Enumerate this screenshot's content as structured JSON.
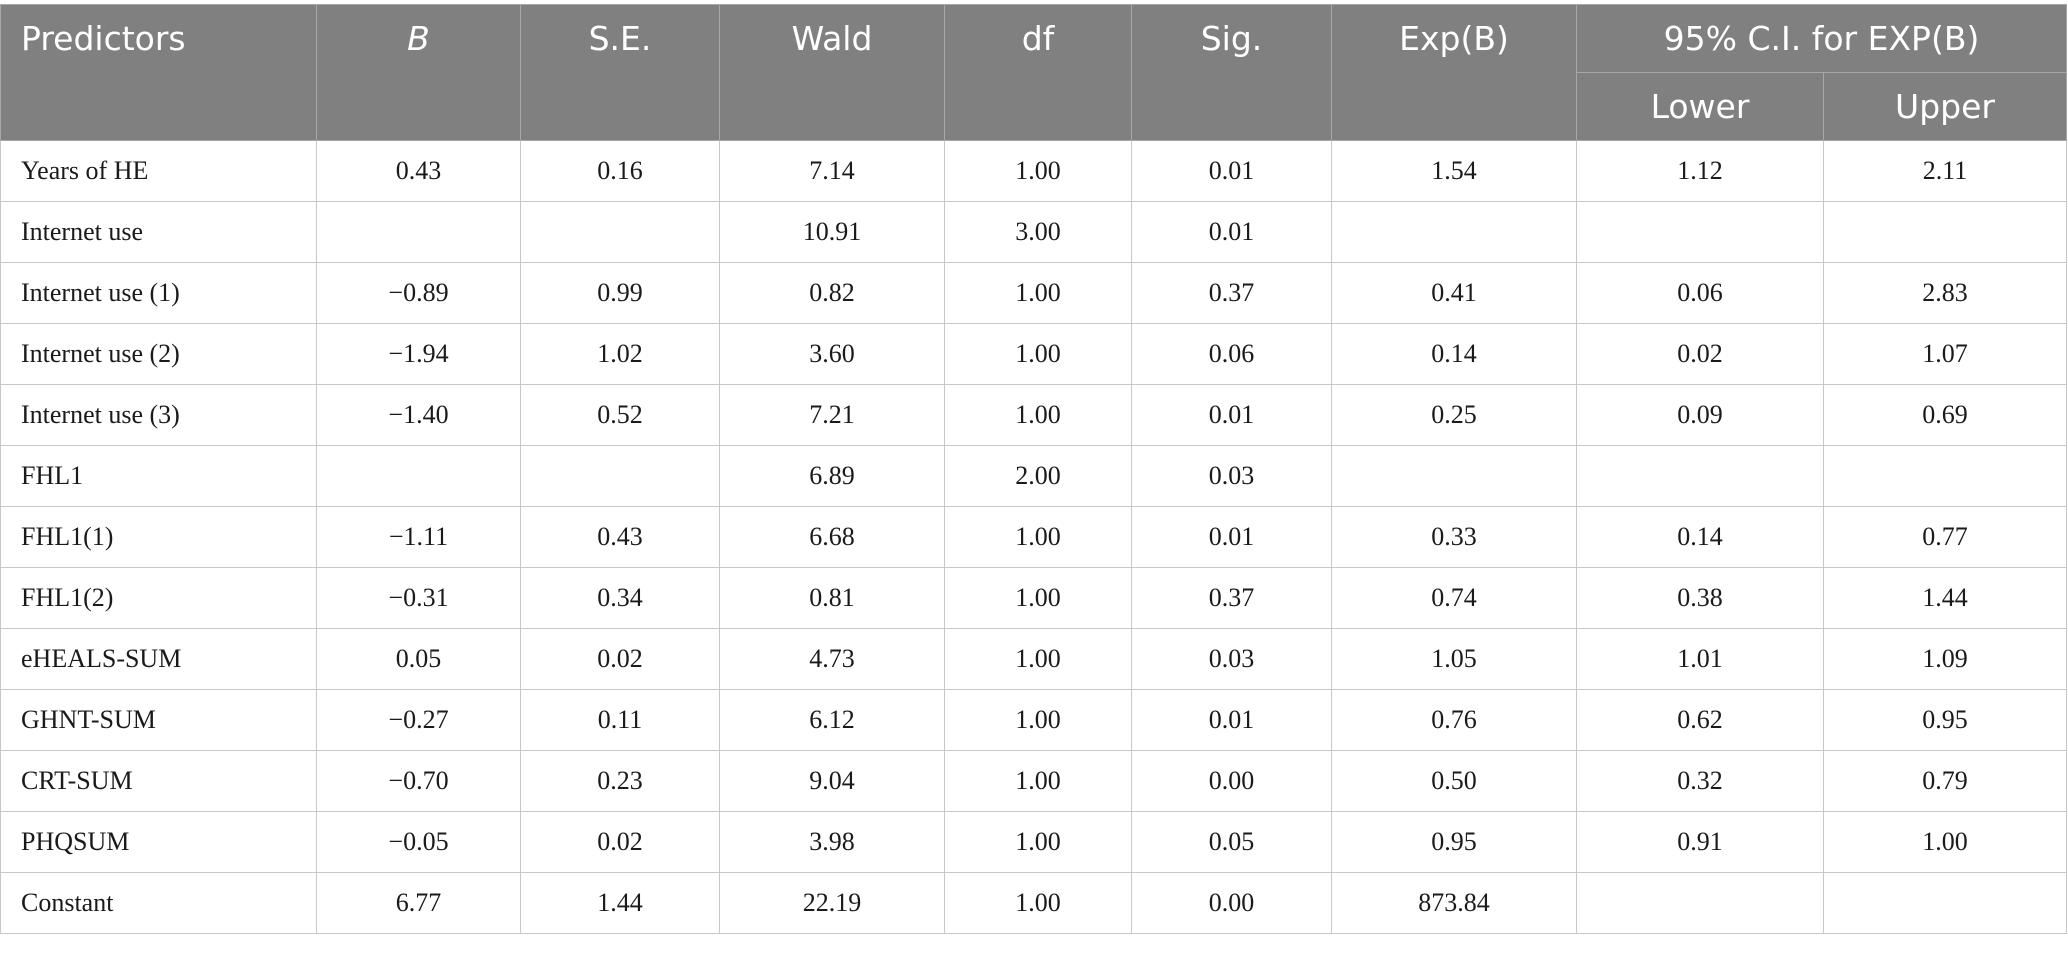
{
  "headers": {
    "predictors": "Predictors",
    "b": "B",
    "se": "S.E.",
    "wald": "Wald",
    "df": "df",
    "sig": "Sig.",
    "expb": "Exp(B)",
    "ci": "95% C.I. for EXP(B)",
    "lower": "Lower",
    "upper": "Upper"
  },
  "rows": [
    {
      "label": "Years of HE",
      "b": "0.43",
      "se": "0.16",
      "wald": "7.14",
      "df": "1.00",
      "sig": "0.01",
      "expb": "1.54",
      "lower": "1.12",
      "upper": "2.11"
    },
    {
      "label": "Internet use",
      "b": "",
      "se": "",
      "wald": "10.91",
      "df": "3.00",
      "sig": "0.01",
      "expb": "",
      "lower": "",
      "upper": ""
    },
    {
      "label": "Internet use (1)",
      "b": "−0.89",
      "se": "0.99",
      "wald": "0.82",
      "df": "1.00",
      "sig": "0.37",
      "expb": "0.41",
      "lower": "0.06",
      "upper": "2.83"
    },
    {
      "label": "Internet use (2)",
      "b": "−1.94",
      "se": "1.02",
      "wald": "3.60",
      "df": "1.00",
      "sig": "0.06",
      "expb": "0.14",
      "lower": "0.02",
      "upper": "1.07"
    },
    {
      "label": "Internet use (3)",
      "b": "−1.40",
      "se": "0.52",
      "wald": "7.21",
      "df": "1.00",
      "sig": "0.01",
      "expb": "0.25",
      "lower": "0.09",
      "upper": "0.69"
    },
    {
      "label": "FHL1",
      "b": "",
      "se": "",
      "wald": "6.89",
      "df": "2.00",
      "sig": "0.03",
      "expb": "",
      "lower": "",
      "upper": ""
    },
    {
      "label": "FHL1(1)",
      "b": "−1.11",
      "se": "0.43",
      "wald": "6.68",
      "df": "1.00",
      "sig": "0.01",
      "expb": "0.33",
      "lower": "0.14",
      "upper": "0.77"
    },
    {
      "label": "FHL1(2)",
      "b": "−0.31",
      "se": "0.34",
      "wald": "0.81",
      "df": "1.00",
      "sig": "0.37",
      "expb": "0.74",
      "lower": "0.38",
      "upper": "1.44"
    },
    {
      "label": "eHEALS-SUM",
      "b": "0.05",
      "se": "0.02",
      "wald": "4.73",
      "df": "1.00",
      "sig": "0.03",
      "expb": "1.05",
      "lower": "1.01",
      "upper": "1.09"
    },
    {
      "label": "GHNT-SUM",
      "b": "−0.27",
      "se": "0.11",
      "wald": "6.12",
      "df": "1.00",
      "sig": "0.01",
      "expb": "0.76",
      "lower": "0.62",
      "upper": "0.95"
    },
    {
      "label": "CRT-SUM",
      "b": "−0.70",
      "se": "0.23",
      "wald": "9.04",
      "df": "1.00",
      "sig": "0.00",
      "expb": "0.50",
      "lower": "0.32",
      "upper": "0.79"
    },
    {
      "label": "PHQSUM",
      "b": "−0.05",
      "se": "0.02",
      "wald": "3.98",
      "df": "1.00",
      "sig": "0.05",
      "expb": "0.95",
      "lower": "0.91",
      "upper": "1.00"
    },
    {
      "label": "Constant",
      "b": "6.77",
      "se": "1.44",
      "wald": "22.19",
      "df": "1.00",
      "sig": "0.00",
      "expb": "873.84",
      "lower": "",
      "upper": ""
    }
  ]
}
